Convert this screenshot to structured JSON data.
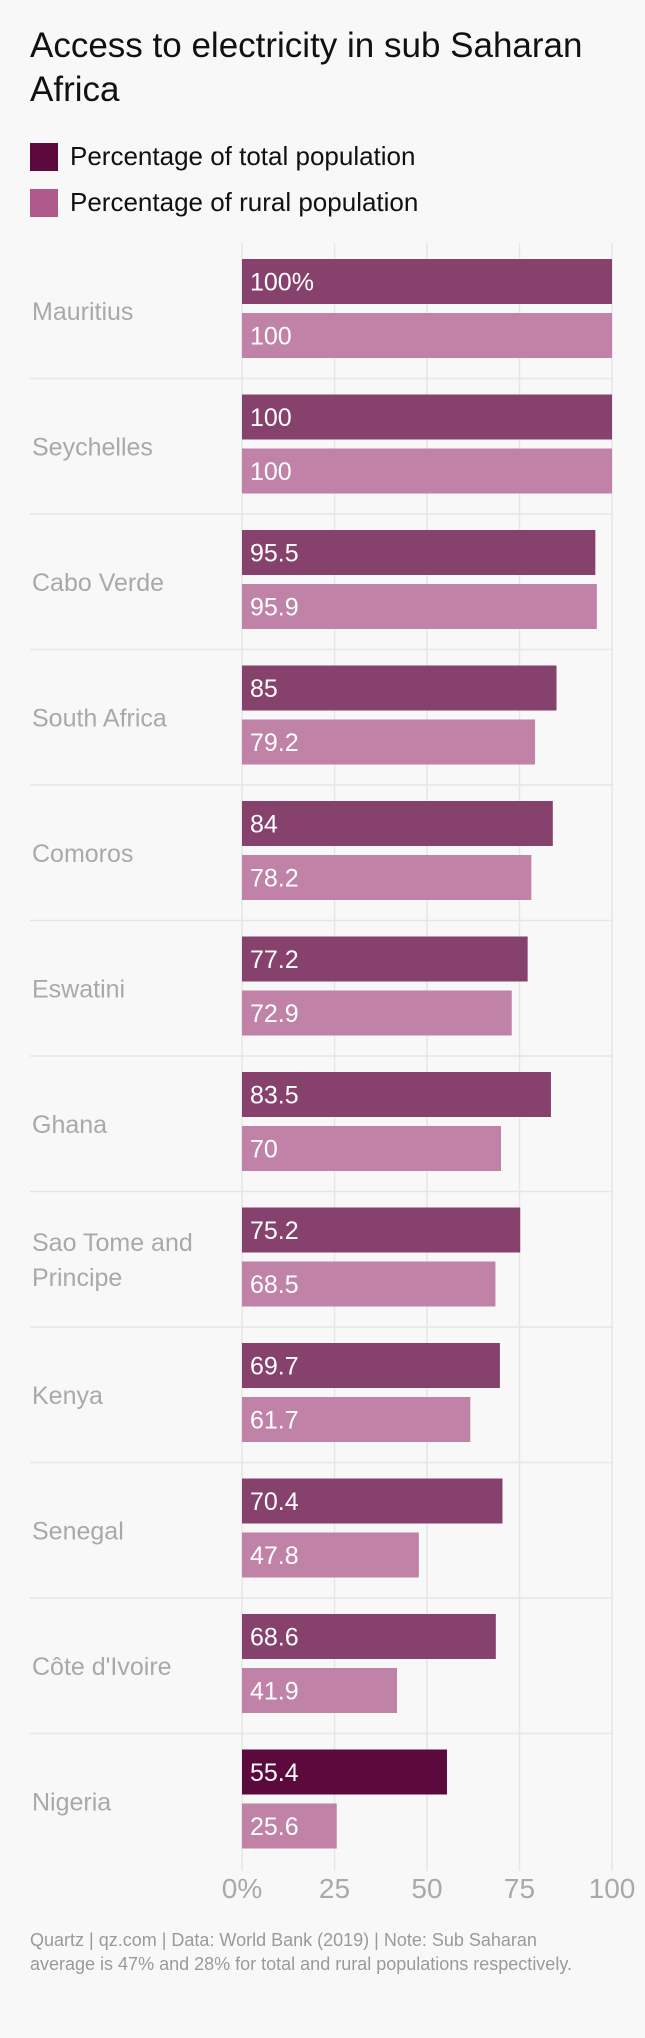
{
  "title": "Access to electricity in sub Saharan Africa",
  "legend": [
    {
      "label": "Percentage of total population",
      "color": "#5c0a3e"
    },
    {
      "label": "Percentage of rural population",
      "color": "#b05a8c"
    }
  ],
  "colors": {
    "total_bar": "#86416c",
    "total_bar_highlight": "#5c0a3e",
    "rural_bar": "#c082a6",
    "country_label": "#a9a9a9",
    "tick_label": "#a9a9a9",
    "grid": "#e6e6e6",
    "bar_text": "#ffffff"
  },
  "chart_data": {
    "type": "bar",
    "orientation": "horizontal",
    "categories": [
      "Mauritius",
      "Seychelles",
      "Cabo Verde",
      "South Africa",
      "Comoros",
      "Eswatini",
      "Ghana",
      "Sao Tome and Principe",
      "Kenya",
      "Senegal",
      "Côte d'Ivoire",
      "Nigeria"
    ],
    "series": [
      {
        "name": "Percentage of total population",
        "values": [
          100,
          100,
          95.5,
          85,
          84,
          77.2,
          83.5,
          75.2,
          69.7,
          70.4,
          68.6,
          55.4
        ]
      },
      {
        "name": "Percentage of rural population",
        "values": [
          100,
          100,
          95.9,
          79.2,
          78.2,
          72.9,
          70,
          68.5,
          61.7,
          47.8,
          41.9,
          25.6
        ]
      }
    ],
    "value_labels": {
      "total": [
        "100%",
        "100",
        "95.5",
        "85",
        "84",
        "77.2",
        "83.5",
        "75.2",
        "69.7",
        "70.4",
        "68.6",
        "55.4"
      ],
      "rural": [
        "100",
        "100",
        "95.9",
        "79.2",
        "78.2",
        "72.9",
        "70",
        "68.5",
        "61.7",
        "47.8",
        "41.9",
        "25.6"
      ]
    },
    "highlight_category": "Nigeria",
    "xlim": [
      0,
      100
    ],
    "ticks": [
      0,
      25,
      50,
      75,
      100
    ],
    "tick_labels": [
      "0%",
      "25",
      "50",
      "75",
      "100"
    ],
    "grid": true
  },
  "footer": "Quartz | qz.com | Data: World Bank (2019) | Note: Sub Saharan average is 47% and 28% for total and rural populations respectively."
}
